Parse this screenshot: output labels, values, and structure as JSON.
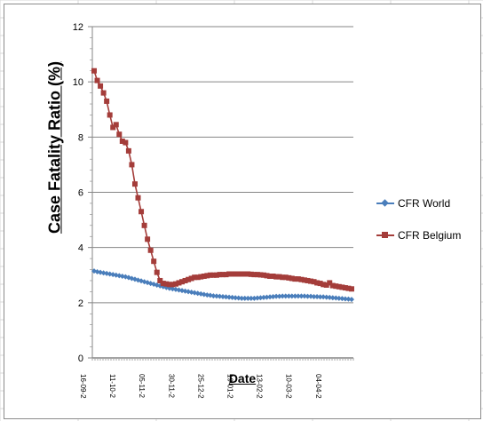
{
  "chart_data": {
    "type": "line",
    "title": "",
    "xlabel": "Date",
    "ylabel": "Case Fatality Ratio (%)",
    "ylim": [
      0,
      12
    ],
    "yticks": [
      "0",
      "2",
      "4",
      "6",
      "8",
      "10",
      "12"
    ],
    "xtick_labels": [
      "16-09-2",
      "11-10-2",
      "05-11-2",
      "30-11-2",
      "25-12-2",
      "19-01-2",
      "13-02-2",
      "10-03-2",
      "04-04-2"
    ],
    "grid": "horizontal",
    "legend_position": "right",
    "series": [
      {
        "name": "CFR World",
        "color": "#4a7ebb",
        "marker": "diamond",
        "values": [
          3.15,
          3.12,
          3.1,
          3.08,
          3.06,
          3.04,
          3.02,
          3.0,
          2.98,
          2.96,
          2.94,
          2.91,
          2.88,
          2.85,
          2.82,
          2.79,
          2.76,
          2.73,
          2.7,
          2.67,
          2.64,
          2.61,
          2.58,
          2.55,
          2.52,
          2.5,
          2.48,
          2.46,
          2.44,
          2.42,
          2.4,
          2.38,
          2.36,
          2.34,
          2.32,
          2.3,
          2.28,
          2.27,
          2.25,
          2.24,
          2.23,
          2.22,
          2.21,
          2.2,
          2.19,
          2.18,
          2.17,
          2.16,
          2.16,
          2.16,
          2.16,
          2.16,
          2.17,
          2.18,
          2.19,
          2.2,
          2.21,
          2.22,
          2.23,
          2.23,
          2.24,
          2.24,
          2.24,
          2.24,
          2.24,
          2.24,
          2.24,
          2.24,
          2.23,
          2.23,
          2.22,
          2.22,
          2.21,
          2.21,
          2.2,
          2.19,
          2.18,
          2.17,
          2.16,
          2.15,
          2.14,
          2.13,
          2.12
        ]
      },
      {
        "name": "CFR Belgium",
        "color": "#a43d3a",
        "marker": "square",
        "values": [
          10.4,
          10.05,
          9.85,
          9.6,
          9.3,
          8.8,
          8.35,
          8.45,
          8.1,
          7.85,
          7.8,
          7.5,
          7.0,
          6.3,
          5.8,
          5.3,
          4.8,
          4.3,
          3.9,
          3.5,
          3.1,
          2.8,
          2.7,
          2.68,
          2.66,
          2.66,
          2.68,
          2.72,
          2.76,
          2.8,
          2.84,
          2.88,
          2.92,
          2.92,
          2.94,
          2.96,
          2.98,
          3.0,
          3.0,
          3.0,
          3.02,
          3.02,
          3.02,
          3.04,
          3.04,
          3.04,
          3.04,
          3.04,
          3.04,
          3.04,
          3.03,
          3.02,
          3.02,
          3.01,
          3.0,
          2.98,
          2.96,
          2.96,
          2.94,
          2.94,
          2.92,
          2.92,
          2.9,
          2.88,
          2.86,
          2.86,
          2.84,
          2.82,
          2.8,
          2.78,
          2.76,
          2.72,
          2.7,
          2.66,
          2.64,
          2.72,
          2.62,
          2.6,
          2.58,
          2.56,
          2.54,
          2.52,
          2.5
        ]
      }
    ]
  }
}
